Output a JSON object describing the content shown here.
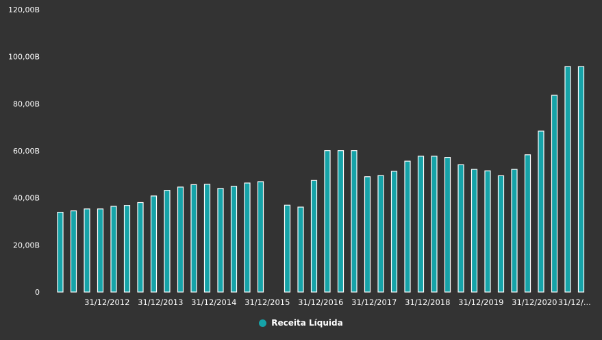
{
  "chart_data": {
    "type": "bar",
    "title": "",
    "xlabel": "",
    "ylabel": "",
    "ylim": [
      0,
      120
    ],
    "y_unit": "B",
    "yticks": [
      {
        "value": 0,
        "label": "0"
      },
      {
        "value": 20,
        "label": "20,00B"
      },
      {
        "value": 40,
        "label": "40,00B"
      },
      {
        "value": 60,
        "label": "60,00B"
      },
      {
        "value": 80,
        "label": "80,00B"
      },
      {
        "value": 100,
        "label": "100,00B"
      },
      {
        "value": 120,
        "label": "120,00B"
      }
    ],
    "xticks": [
      {
        "slot": 3.5,
        "label": "31/12/2012"
      },
      {
        "slot": 7.5,
        "label": "31/12/2013"
      },
      {
        "slot": 11.5,
        "label": "31/12/2014"
      },
      {
        "slot": 15.5,
        "label": "31/12/2015"
      },
      {
        "slot": 19.5,
        "label": "31/12/2016"
      },
      {
        "slot": 23.5,
        "label": "31/12/2017"
      },
      {
        "slot": 27.5,
        "label": "31/12/2018"
      },
      {
        "slot": 31.5,
        "label": "31/12/2019"
      },
      {
        "slot": 35.5,
        "label": "31/12/2020"
      },
      {
        "slot": 38.5,
        "label": "31/12/..."
      }
    ],
    "legend_position": "bottom-center",
    "grid": false,
    "series": [
      {
        "name": "Receita Líquida",
        "color": "#16a3a8",
        "values": [
          33.9,
          34.5,
          35.3,
          35.3,
          36.4,
          36.8,
          38.0,
          40.8,
          43.2,
          44.6,
          45.6,
          45.8,
          44.0,
          44.9,
          46.3,
          46.9,
          null,
          36.9,
          36.1,
          47.4,
          60.1,
          60.1,
          60.1,
          49.0,
          49.5,
          51.3,
          55.6,
          57.7,
          57.7,
          57.2,
          54.1,
          52.1,
          51.5,
          49.4,
          52.1,
          58.3,
          68.4,
          83.6,
          95.8,
          95.8
        ]
      }
    ]
  },
  "legend": {
    "label": "Receita Líquida",
    "color": "#16a3a8"
  }
}
